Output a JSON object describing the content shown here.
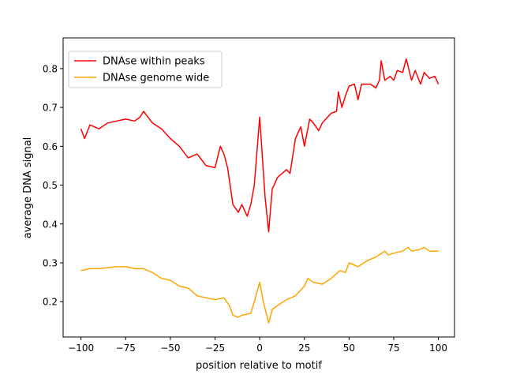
{
  "chart_data": {
    "type": "line",
    "title": "",
    "xlabel": "position relative to motif",
    "ylabel": "average DNA signal",
    "xlim": [
      -110,
      109
    ],
    "ylim": [
      0.109,
      0.879
    ],
    "xticks": [
      -100,
      -75,
      -50,
      -25,
      0,
      25,
      50,
      75,
      100
    ],
    "xtick_labels": [
      "−100",
      "−75",
      "−50",
      "−25",
      "0",
      "25",
      "50",
      "75",
      "100"
    ],
    "yticks": [
      0.2,
      0.3,
      0.4,
      0.5,
      0.6,
      0.7,
      0.8
    ],
    "ytick_labels": [
      "0.2",
      "0.3",
      "0.4",
      "0.5",
      "0.6",
      "0.7",
      "0.8"
    ],
    "grid": false,
    "legend_position": "top-left",
    "series": [
      {
        "name": "DNAse within peaks",
        "color": "#ff0000",
        "x": [
          -100,
          -98,
          -95,
          -90,
          -85,
          -80,
          -75,
          -70,
          -67,
          -65,
          -60,
          -55,
          -50,
          -45,
          -40,
          -35,
          -30,
          -25,
          -22,
          -20,
          -18,
          -15,
          -12,
          -10,
          -7,
          -5,
          -3,
          0,
          3,
          5,
          7,
          10,
          15,
          17,
          20,
          23,
          25,
          28,
          30,
          33,
          35,
          40,
          43,
          44,
          46,
          48,
          50,
          53,
          55,
          57,
          60,
          62,
          65,
          67,
          68,
          70,
          73,
          75,
          77,
          80,
          82,
          85,
          87,
          90,
          92,
          95,
          98,
          100
        ],
        "y": [
          0.645,
          0.62,
          0.655,
          0.645,
          0.66,
          0.665,
          0.67,
          0.665,
          0.675,
          0.69,
          0.66,
          0.645,
          0.62,
          0.6,
          0.57,
          0.58,
          0.55,
          0.545,
          0.6,
          0.58,
          0.545,
          0.45,
          0.43,
          0.45,
          0.42,
          0.45,
          0.5,
          0.675,
          0.47,
          0.38,
          0.49,
          0.52,
          0.54,
          0.53,
          0.62,
          0.65,
          0.6,
          0.67,
          0.66,
          0.64,
          0.66,
          0.685,
          0.69,
          0.74,
          0.7,
          0.73,
          0.755,
          0.76,
          0.72,
          0.76,
          0.76,
          0.76,
          0.75,
          0.77,
          0.82,
          0.77,
          0.78,
          0.77,
          0.795,
          0.79,
          0.825,
          0.77,
          0.795,
          0.76,
          0.79,
          0.775,
          0.78,
          0.76
        ]
      },
      {
        "name": "DNAse genome wide",
        "color": "#ffa500",
        "x": [
          -100,
          -95,
          -90,
          -80,
          -75,
          -70,
          -65,
          -60,
          -55,
          -50,
          -45,
          -40,
          -35,
          -30,
          -25,
          -20,
          -17,
          -15,
          -12,
          -10,
          -5,
          -3,
          0,
          2,
          5,
          7,
          10,
          15,
          20,
          25,
          27,
          30,
          35,
          40,
          45,
          48,
          50,
          55,
          60,
          65,
          70,
          72,
          75,
          80,
          83,
          85,
          90,
          92,
          95,
          100
        ],
        "y": [
          0.28,
          0.285,
          0.285,
          0.29,
          0.29,
          0.285,
          0.285,
          0.275,
          0.26,
          0.255,
          0.24,
          0.235,
          0.215,
          0.21,
          0.205,
          0.21,
          0.19,
          0.165,
          0.16,
          0.165,
          0.17,
          0.2,
          0.25,
          0.2,
          0.145,
          0.18,
          0.19,
          0.205,
          0.215,
          0.24,
          0.26,
          0.25,
          0.245,
          0.26,
          0.28,
          0.275,
          0.3,
          0.29,
          0.305,
          0.315,
          0.33,
          0.32,
          0.325,
          0.33,
          0.34,
          0.33,
          0.335,
          0.34,
          0.33,
          0.33
        ]
      }
    ]
  }
}
